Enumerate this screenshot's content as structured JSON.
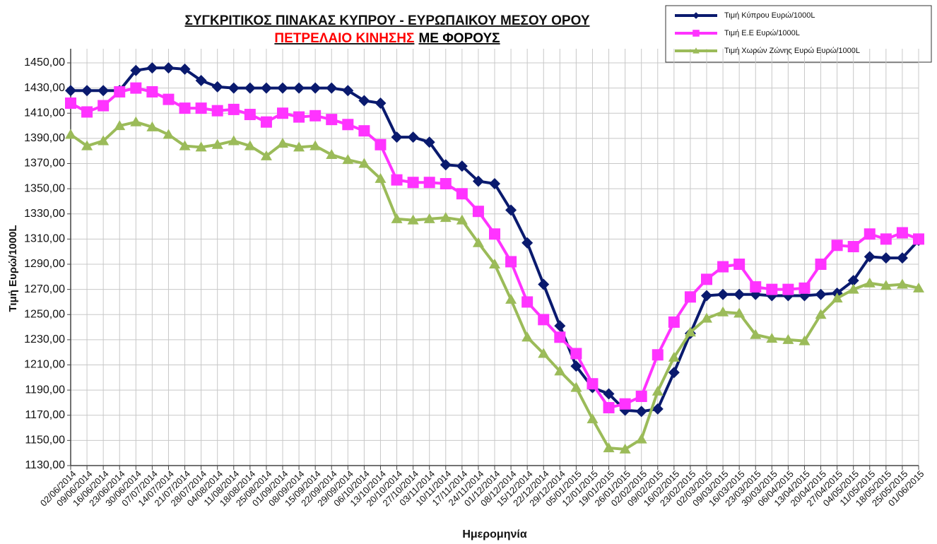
{
  "chart_data": {
    "type": "line",
    "title": "ΣΥΓΚΡΙΤΙΚΟΣ ΠΙΝΑΚΑΣ ΚΥΠΡΟΥ - ΕΥΡΩΠΑΙΚΟΥ ΜΕΣΟΥ ΟΡΟΥ",
    "subtitle": [
      "ΠΕΤΡΕΛΑΙΟ ΚΙΝΗΣΗΣ",
      "ΜΕ ΦΟΡΟΥΣ"
    ],
    "subtitle_colors": [
      "#ff0000",
      "#000000"
    ],
    "x_label": "Ημερομηνία",
    "y_label": "Τιμή Ευρώ/1000L",
    "categories": [
      "02/06/2014",
      "09/06/2014",
      "16/06/2014",
      "23/06/2014",
      "30/06/2014",
      "07/07/2014",
      "14/07/2014",
      "21/07/2014",
      "28/07/2014",
      "04/08/2014",
      "11/08/2014",
      "18/08/2014",
      "25/08/2014",
      "01/09/2014",
      "08/09/2014",
      "15/09/2014",
      "22/09/2014",
      "29/09/2014",
      "06/10/2014",
      "13/10/2014",
      "20/10/2014",
      "27/10/2014",
      "03/11/2014",
      "10/11/2014",
      "17/11/2014",
      "24/11/2014",
      "01/12/2014",
      "08/12/2014",
      "15/12/2014",
      "22/12/2014",
      "29/12/2014",
      "05/01/2015",
      "12/01/2015",
      "19/01/2015",
      "26/01/2015",
      "02/02/2015",
      "09/02/2015",
      "16/02/2015",
      "23/02/2015",
      "02/03/2015",
      "09/03/2015",
      "16/03/2015",
      "23/03/2015",
      "30/03/2015",
      "06/04/2015",
      "13/04/2015",
      "20/04/2015",
      "27/04/2015",
      "04/05/2015",
      "11/05/2015",
      "18/05/2015",
      "25/05/2015",
      "01/06/2015"
    ],
    "series": [
      {
        "name": "Τιμή Κύπρου Ευρώ/1000L",
        "color": "#0a1a6e",
        "marker": "diamond",
        "values": [
          1428,
          1428,
          1428,
          1428,
          1444,
          1446,
          1446,
          1445,
          1436,
          1431,
          1430,
          1430,
          1430,
          1430,
          1430,
          1430,
          1430,
          1428,
          1420,
          1418,
          1391,
          1391,
          1387,
          1369,
          1368,
          1356,
          1354,
          1333,
          1307,
          1274,
          1241,
          1209,
          1192,
          1187,
          1174,
          1173,
          1175,
          1204,
          1235,
          1265,
          1266,
          1266,
          1266,
          1265,
          1265,
          1265,
          1266,
          1267,
          1277,
          1296,
          1295,
          1295,
          1309
        ]
      },
      {
        "name": "Τιμή Ε.Ε Ευρώ/1000L",
        "color": "#ff33ff",
        "marker": "square",
        "values": [
          1418,
          1411,
          1416,
          1427,
          1430,
          1427,
          1421,
          1414,
          1414,
          1412,
          1413,
          1409,
          1403,
          1410,
          1407,
          1408,
          1405,
          1401,
          1396,
          1385,
          1357,
          1355,
          1355,
          1354,
          1346,
          1332,
          1314,
          1292,
          1260,
          1246,
          1232,
          1219,
          1195,
          1176,
          1179,
          1185,
          1218,
          1244,
          1264,
          1278,
          1288,
          1290,
          1272,
          1270,
          1270,
          1271,
          1290,
          1305,
          1304,
          1314,
          1310,
          1315,
          1310
        ]
      },
      {
        "name": "Τιμή Χωρών  Ζώνης Ευρώ Ευρώ/1000L",
        "color": "#9bbb59",
        "marker": "triangle",
        "values": [
          1393,
          1384,
          1388,
          1400,
          1403,
          1399,
          1393,
          1384,
          1383,
          1385,
          1388,
          1384,
          1376,
          1386,
          1383,
          1384,
          1377,
          1373,
          1370,
          1358,
          1326,
          1325,
          1326,
          1327,
          1325,
          1307,
          1290,
          1262,
          1232,
          1219,
          1205,
          1192,
          1167,
          1144,
          1143,
          1151,
          1189,
          1216,
          1236,
          1247,
          1252,
          1251,
          1234,
          1231,
          1230,
          1229,
          1250,
          1263,
          1270,
          1275,
          1273,
          1274,
          1271
        ]
      }
    ],
    "ylim": [
      1130,
      1450
    ],
    "yticks": [
      {
        "value": 1130,
        "label": "1130,00"
      },
      {
        "value": 1150,
        "label": "1150,00"
      },
      {
        "value": 1170,
        "label": "1170,00"
      },
      {
        "value": 1190,
        "label": "1190,00"
      },
      {
        "value": 1210,
        "label": "1210,00"
      },
      {
        "value": 1230,
        "label": "1230,00"
      },
      {
        "value": 1250,
        "label": "1250,00"
      },
      {
        "value": 1270,
        "label": "1270,00"
      },
      {
        "value": 1290,
        "label": "1290,00"
      },
      {
        "value": 1310,
        "label": "1310,00"
      },
      {
        "value": 1330,
        "label": "1330,00"
      },
      {
        "value": 1350,
        "label": "1350,00"
      },
      {
        "value": 1370,
        "label": "1370,00"
      },
      {
        "value": 1390,
        "label": "1390,00"
      },
      {
        "value": 1410,
        "label": "1410,00"
      },
      {
        "value": 1430,
        "label": "1430,00"
      },
      {
        "value": 1450,
        "label": "1450,00"
      }
    ],
    "grid": true,
    "legend": "top-right"
  }
}
